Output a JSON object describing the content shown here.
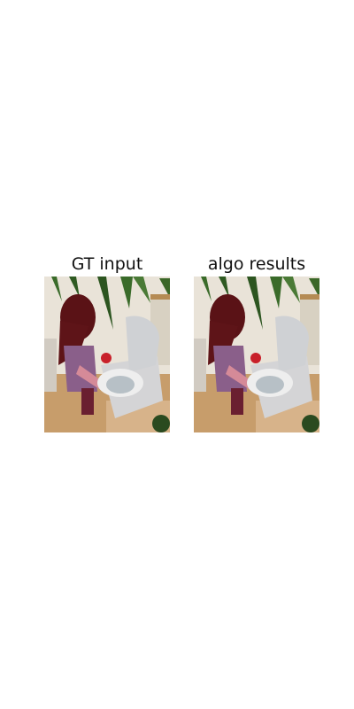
{
  "panels": [
    {
      "title": "GT input"
    },
    {
      "title": "algo results"
    }
  ],
  "colors": {
    "background": "#ffffff",
    "text": "#111111"
  }
}
